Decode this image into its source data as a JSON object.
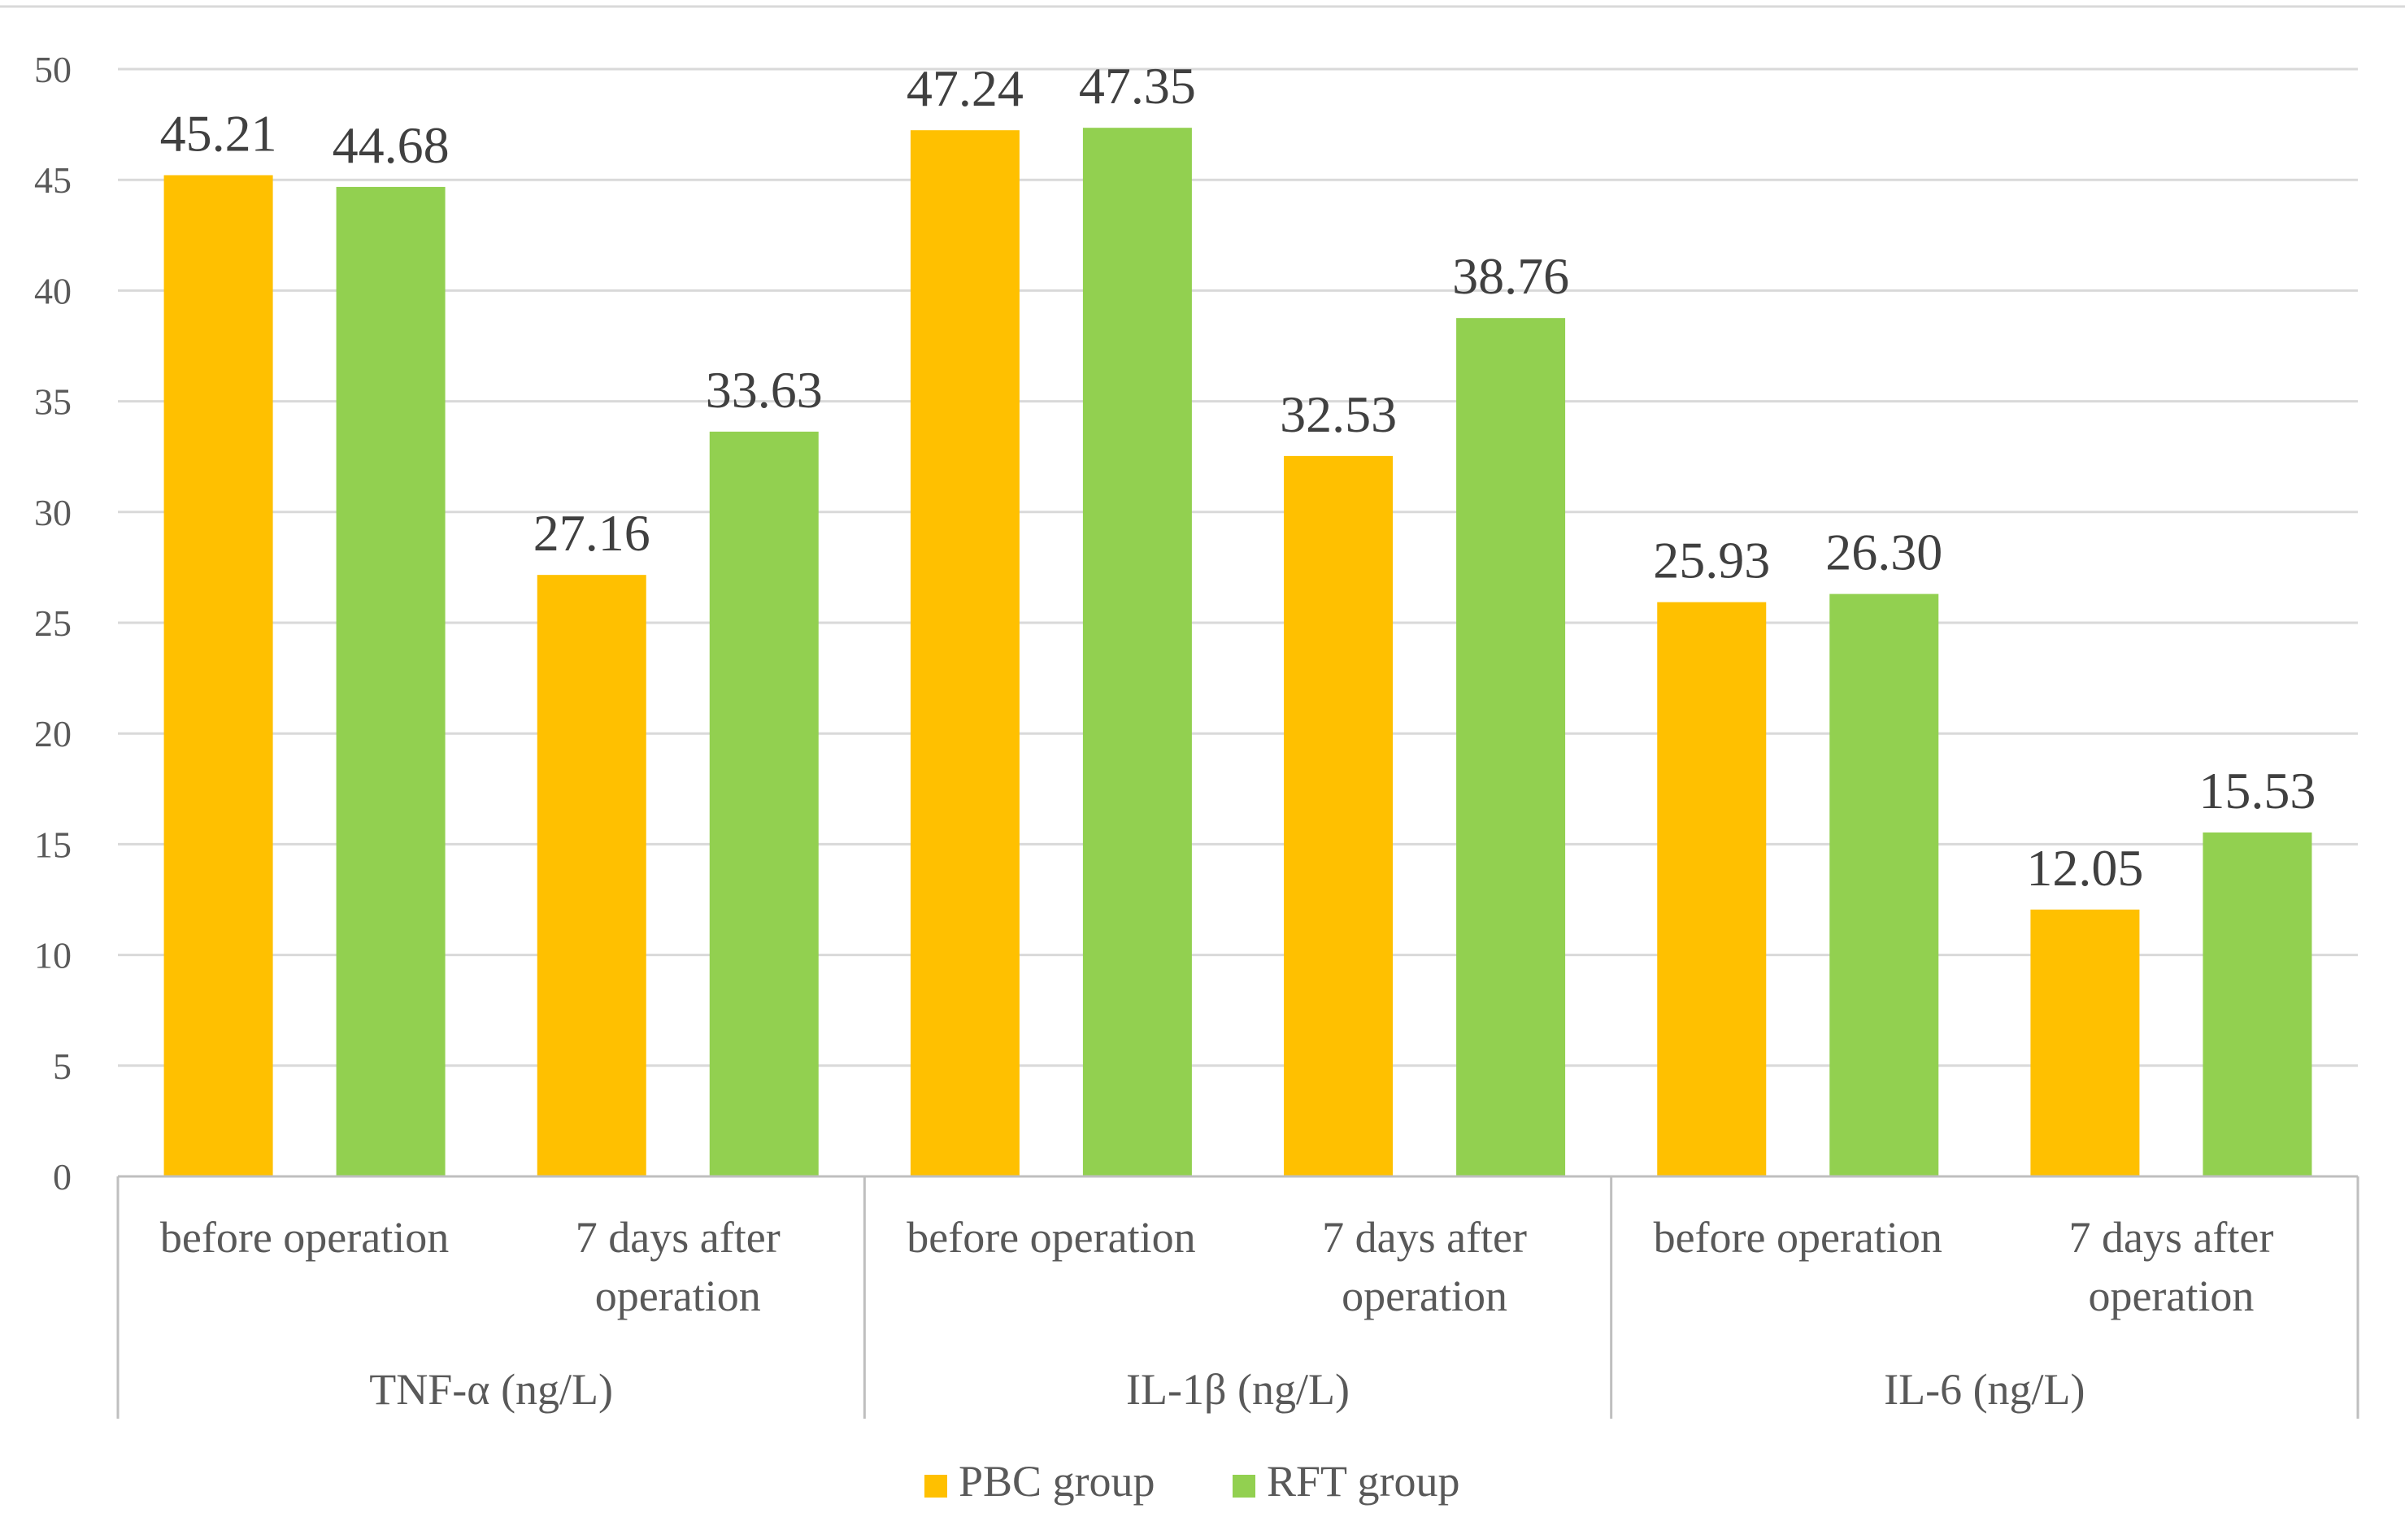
{
  "chart_data": {
    "type": "bar",
    "title": "",
    "xlabel": "",
    "ylabel": "",
    "ylim": [
      0,
      50
    ],
    "ytick_step": 5,
    "grid": true,
    "legend_position": "bottom-center",
    "groups": [
      {
        "label": "TNF-α (ng/L)",
        "categories": [
          "before operation",
          "7 days after operation"
        ]
      },
      {
        "label": "IL-1β (ng/L)",
        "categories": [
          "before operation",
          "7 days after operation"
        ]
      },
      {
        "label": "IL-6 (ng/L)",
        "categories": [
          "before operation",
          "7 days after operation"
        ]
      }
    ],
    "categories": [
      "TNF-α (ng/L) – before operation",
      "TNF-α (ng/L) – 7 days after operation",
      "IL-1β (ng/L) – before operation",
      "IL-1β (ng/L) – 7 days after operation",
      "IL-6 (ng/L) – before operation",
      "IL-6 (ng/L) – 7 days after operation"
    ],
    "series": [
      {
        "name": "PBC group",
        "color": "#FFC000",
        "values": [
          45.21,
          27.16,
          47.24,
          32.53,
          25.93,
          12.05
        ],
        "labels": [
          "45.21",
          "27.16",
          "47.24",
          "32.53",
          "25.93",
          "12.05"
        ]
      },
      {
        "name": "RFT group",
        "color": "#92D050",
        "values": [
          44.68,
          33.63,
          47.35,
          38.76,
          26.3,
          15.53
        ],
        "labels": [
          "44.68",
          "33.63",
          "47.35",
          "38.76",
          "26.30",
          "15.53"
        ]
      }
    ],
    "colors": {
      "grid": "#d9d9d9",
      "axis": "#bfbfbf",
      "tick_text": "#595959",
      "data_label_text": "#404040"
    }
  }
}
